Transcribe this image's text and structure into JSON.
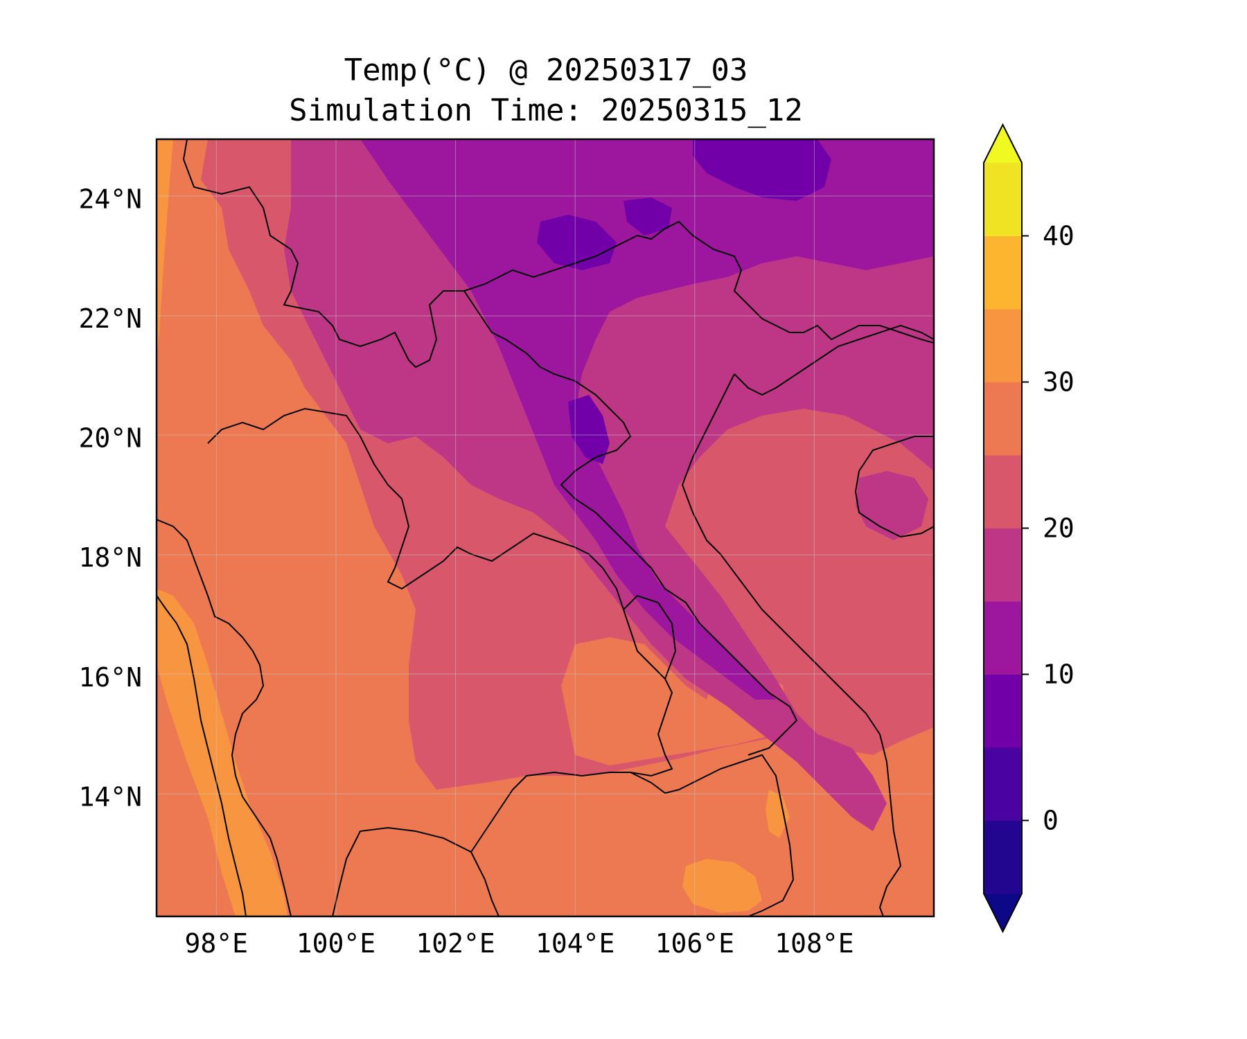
{
  "title": {
    "line1": "Temp(°C) @ 20250317_03",
    "line2": "Simulation Time: 20250315_12"
  },
  "map": {
    "lon_range": [
      97.0,
      110.0
    ],
    "lat_range": [
      12.0,
      25.0
    ],
    "x_ticks": [
      {
        "value": 98,
        "label": "98°E"
      },
      {
        "value": 100,
        "label": "100°E"
      },
      {
        "value": 102,
        "label": "102°E"
      },
      {
        "value": 104,
        "label": "104°E"
      },
      {
        "value": 106,
        "label": "106°E"
      },
      {
        "value": 108,
        "label": "108°E"
      }
    ],
    "y_ticks": [
      {
        "value": 24,
        "label": "24°N"
      },
      {
        "value": 22,
        "label": "22°N"
      },
      {
        "value": 20,
        "label": "20°N"
      },
      {
        "value": 18,
        "label": "18°N"
      },
      {
        "value": 16,
        "label": "16°N"
      },
      {
        "value": 14,
        "label": "14°N"
      }
    ],
    "gridlines": true,
    "coastlines": true,
    "country_borders": true
  },
  "colorbar": {
    "colormap": "plasma",
    "levels": [
      -5,
      0,
      5,
      10,
      15,
      20,
      25,
      30,
      35,
      40,
      45
    ],
    "extend": "both",
    "tick_labels": [
      {
        "value": 0,
        "label": "0"
      },
      {
        "value": 10,
        "label": "10"
      },
      {
        "value": 20,
        "label": "20"
      },
      {
        "value": 30,
        "label": "30"
      },
      {
        "value": 40,
        "label": "40"
      }
    ],
    "colors": [
      "#0d0887",
      "#220690",
      "#4a02a0",
      "#7100a8",
      "#9c179e",
      "#bd3786",
      "#d8576b",
      "#ed7953",
      "#f89540",
      "#fdb42f",
      "#f0e324",
      "#f0f921"
    ]
  }
}
